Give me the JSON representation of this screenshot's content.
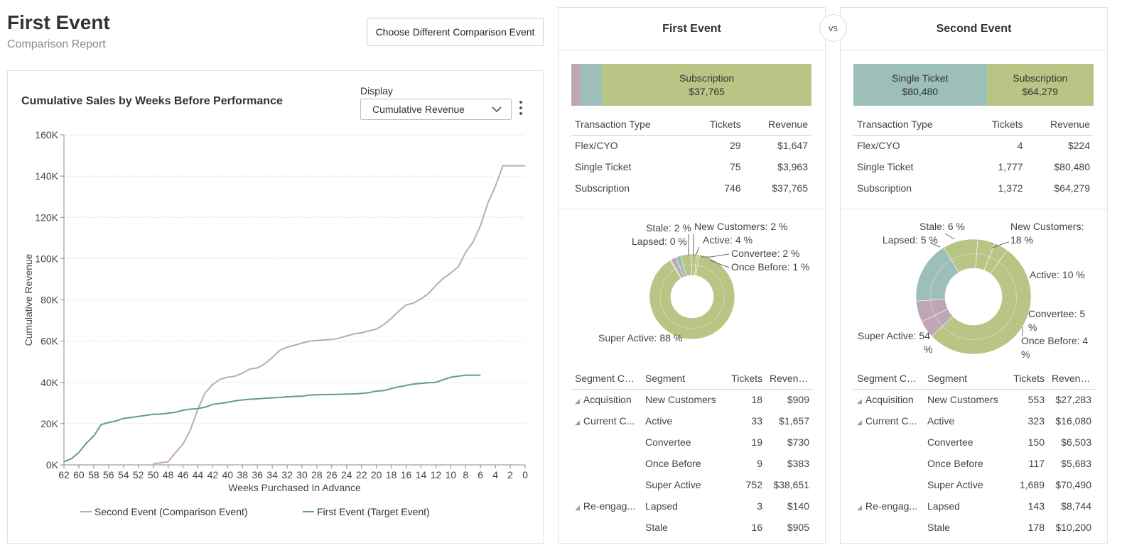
{
  "header": {
    "title": "First Event",
    "subtitle": "Comparison Report",
    "choose_button": "Choose Different Comparison Event"
  },
  "chart_card": {
    "display_label": "Display",
    "display_value": "Cumulative Revenue"
  },
  "chart_data": {
    "type": "line",
    "title": "Cumulative Sales by Weeks Before Performance",
    "xlabel": "Weeks Purchased In Advance",
    "ylabel": "Cumulative Revenue",
    "xlim": [
      62,
      0
    ],
    "ylim": [
      0,
      160000
    ],
    "x_ticks": [
      "62",
      "60",
      "58",
      "56",
      "54",
      "52",
      "50",
      "48",
      "46",
      "44",
      "42",
      "40",
      "38",
      "36",
      "34",
      "32",
      "30",
      "28",
      "26",
      "24",
      "22",
      "20",
      "18",
      "16",
      "14",
      "12",
      "10",
      "8",
      "6",
      "4",
      "2",
      "0"
    ],
    "y_ticks": [
      "0K",
      "20K",
      "40K",
      "60K",
      "80K",
      "100K",
      "120K",
      "140K",
      "160K"
    ],
    "legend_position": "bottom",
    "series": [
      {
        "name": "Second Event (Comparison Event)",
        "color": "#c0a7b6",
        "x": [
          50,
          49,
          48,
          47,
          46,
          45,
          44,
          43,
          42,
          41,
          40,
          39,
          38,
          37,
          36,
          35,
          34,
          33,
          32,
          31,
          30,
          29,
          28,
          27,
          26,
          25,
          24,
          23,
          22,
          21,
          20,
          19,
          18,
          17,
          16,
          15,
          14,
          13,
          12,
          11,
          10,
          9,
          8,
          7,
          6,
          5,
          4,
          3,
          2,
          1,
          0
        ],
        "y": [
          500,
          1000,
          1500,
          6000,
          10000,
          17000,
          27000,
          35000,
          39000,
          41500,
          42500,
          43000,
          44500,
          46500,
          47000,
          49000,
          52000,
          55500,
          57000,
          58000,
          59000,
          60000,
          60300,
          60600,
          60800,
          61500,
          62500,
          63500,
          64000,
          65000,
          65800,
          68000,
          71000,
          74500,
          77500,
          78500,
          80500,
          83000,
          87000,
          90500,
          93000,
          96000,
          103000,
          108000,
          116000,
          127000,
          135000,
          145000,
          145000,
          145000,
          145000
        ]
      },
      {
        "name": "First Event (Target Event)",
        "color": "#5e9e8e",
        "x": [
          62,
          61,
          60,
          59,
          58,
          57,
          56,
          55,
          54,
          53,
          52,
          51,
          50,
          49,
          48,
          47,
          46,
          45,
          44,
          43,
          42,
          41,
          40,
          39,
          38,
          37,
          36,
          35,
          34,
          33,
          32,
          31,
          30,
          29,
          28,
          27,
          26,
          25,
          24,
          23,
          22,
          21,
          20,
          19,
          18,
          17,
          16,
          15,
          14,
          13,
          12,
          11,
          10,
          9,
          8,
          7,
          6
        ],
        "y": [
          1500,
          3000,
          6000,
          10500,
          14000,
          19500,
          20500,
          21300,
          22500,
          23000,
          23500,
          24000,
          24500,
          24600,
          25000,
          25500,
          26500,
          27000,
          27300,
          28000,
          29300,
          29800,
          30300,
          31000,
          31500,
          31800,
          32000,
          32300,
          32500,
          32700,
          33000,
          33200,
          33300,
          33800,
          34000,
          34100,
          34100,
          34200,
          34300,
          34400,
          34600,
          35000,
          35800,
          36000,
          37000,
          37800,
          38500,
          39200,
          39500,
          39800,
          40000,
          41300,
          42500,
          43000,
          43500,
          43500,
          43500
        ]
      }
    ]
  },
  "vs_label": "vs",
  "panels": {
    "first": {
      "title": "First Event",
      "stack": [
        {
          "label": "",
          "amount": "",
          "share": 0.037,
          "color": "#bfa6b5"
        },
        {
          "label": "",
          "amount": "",
          "share": 0.091,
          "color": "#9dbfb9"
        },
        {
          "label": "Subscription",
          "amount": "$37,765",
          "share": 0.872,
          "color": "#b8c585"
        }
      ],
      "tx_headers": [
        "Transaction Type",
        "Tickets",
        "Revenue"
      ],
      "tx_rows": [
        {
          "type": "Flex/CYO",
          "tickets": "29",
          "revenue": "$1,647"
        },
        {
          "type": "Single Ticket",
          "tickets": "75",
          "revenue": "$3,963"
        },
        {
          "type": "Subscription",
          "tickets": "746",
          "revenue": "$37,765"
        }
      ],
      "donut": {
        "slices": [
          {
            "name": "Super Active",
            "value": 88,
            "color": "#b8c585"
          },
          {
            "name": "Lapsed",
            "value": 0.4,
            "color": "#d2bcc9"
          },
          {
            "name": "Stale",
            "value": 2,
            "color": "#bfa6b5"
          },
          {
            "name": "New Customers",
            "value": 2,
            "color": "#9dbfb9"
          },
          {
            "name": "Active",
            "value": 4,
            "color": "#b8c585"
          },
          {
            "name": "Convertee",
            "value": 2,
            "color": "#b8c585"
          },
          {
            "name": "Once Before",
            "value": 1,
            "color": "#b8c585"
          }
        ],
        "labels": {
          "stale": "Stale: 2 %",
          "lapsed": "Lapsed: 0 %",
          "new_customers": "New Customers: 2 %",
          "active": "Active: 4 %",
          "convertee": "Convertee: 2 %",
          "once_before": "Once Before: 1 %",
          "super_active": "Super Active: 88 %"
        }
      },
      "seg_headers": [
        "Segment Ca...",
        "Segment",
        "Tickets",
        "Revenue"
      ],
      "seg_rows": [
        {
          "category": "Acquisition",
          "segment": "New Customers",
          "tickets": "18",
          "revenue": "$909"
        },
        {
          "category": "Current C...",
          "segment": "Active",
          "tickets": "33",
          "revenue": "$1,657"
        },
        {
          "category": "",
          "segment": "Convertee",
          "tickets": "19",
          "revenue": "$730"
        },
        {
          "category": "",
          "segment": "Once Before",
          "tickets": "9",
          "revenue": "$383"
        },
        {
          "category": "",
          "segment": "Super Active",
          "tickets": "752",
          "revenue": "$38,651"
        },
        {
          "category": "Re-engag...",
          "segment": "Lapsed",
          "tickets": "3",
          "revenue": "$140"
        },
        {
          "category": "",
          "segment": "Stale",
          "tickets": "16",
          "revenue": "$905"
        }
      ]
    },
    "second": {
      "title": "Second Event",
      "stack": [
        {
          "label": "Single Ticket",
          "amount": "$80,480",
          "share": 0.555,
          "color": "#9dbfb9"
        },
        {
          "label": "Subscription",
          "amount": "$64,279",
          "share": 0.445,
          "color": "#b8c585"
        }
      ],
      "tx_headers": [
        "Transaction Type",
        "Tickets",
        "Revenue"
      ],
      "tx_rows": [
        {
          "type": "Flex/CYO",
          "tickets": "4",
          "revenue": "$224"
        },
        {
          "type": "Single Ticket",
          "tickets": "1,777",
          "revenue": "$80,480"
        },
        {
          "type": "Subscription",
          "tickets": "1,372",
          "revenue": "$64,279"
        }
      ],
      "donut": {
        "slices": [
          {
            "name": "Super Active",
            "value": 54,
            "color": "#b8c585"
          },
          {
            "name": "Lapsed",
            "value": 5,
            "color": "#bfa6b5"
          },
          {
            "name": "Stale",
            "value": 6,
            "color": "#bfa6b5"
          },
          {
            "name": "New Customers",
            "value": 18,
            "color": "#9dbfb9"
          },
          {
            "name": "Active",
            "value": 10,
            "color": "#b8c585"
          },
          {
            "name": "Convertee",
            "value": 5,
            "color": "#b8c585"
          },
          {
            "name": "Once Before",
            "value": 4,
            "color": "#b8c585"
          }
        ],
        "labels": {
          "stale": "Stale: 6 %",
          "lapsed": "Lapsed: 5 %",
          "new_customers_1": "New Customers:",
          "new_customers_2": "18 %",
          "active": "Active: 10 %",
          "convertee_1": "Convertee: 5",
          "convertee_2": "%",
          "once_before_1": "Once Before: 4",
          "once_before_2": "%",
          "super_active_1": "Super Active: 54",
          "super_active_2": "%"
        }
      },
      "seg_headers": [
        "Segment Ca...",
        "Segment",
        "Tickets",
        "Revenue"
      ],
      "seg_rows": [
        {
          "category": "Acquisition",
          "segment": "New Customers",
          "tickets": "553",
          "revenue": "$27,283"
        },
        {
          "category": "Current C...",
          "segment": "Active",
          "tickets": "323",
          "revenue": "$16,080"
        },
        {
          "category": "",
          "segment": "Convertee",
          "tickets": "150",
          "revenue": "$6,503"
        },
        {
          "category": "",
          "segment": "Once Before",
          "tickets": "117",
          "revenue": "$5,683"
        },
        {
          "category": "",
          "segment": "Super Active",
          "tickets": "1,689",
          "revenue": "$70,490"
        },
        {
          "category": "Re-engag...",
          "segment": "Lapsed",
          "tickets": "143",
          "revenue": "$8,744"
        },
        {
          "category": "",
          "segment": "Stale",
          "tickets": "178",
          "revenue": "$10,200"
        }
      ]
    }
  }
}
